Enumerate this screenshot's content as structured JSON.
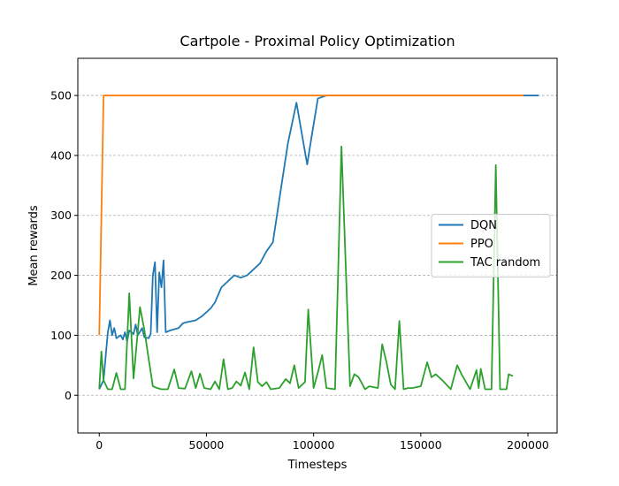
{
  "chart_data": {
    "type": "line",
    "title": "Cartpole - Proximal Policy Optimization",
    "x_label": "Timesteps",
    "y_label": "Mean rewards",
    "xlim": [
      -10000,
      213600
    ],
    "ylim": [
      -63,
      562
    ],
    "xticks": [
      0,
      50000,
      100000,
      150000,
      200000
    ],
    "yticks": [
      0,
      100,
      200,
      300,
      400,
      500
    ],
    "grid": true,
    "legend": "center right",
    "series": [
      {
        "name": "DQN",
        "color": "#1f77b4",
        "x": [
          0,
          2000,
          4000,
          5000,
          6000,
          7000,
          8000,
          10000,
          11000,
          12000,
          13000,
          14000,
          16000,
          17000,
          18000,
          20000,
          21000,
          23000,
          24000,
          25000,
          26000,
          27000,
          28000,
          29000,
          30000,
          31000,
          33000,
          37000,
          39000,
          41000,
          45000,
          48000,
          52000,
          54000,
          57000,
          60000,
          63000,
          66000,
          69000,
          72000,
          75000,
          78000,
          81000,
          85000,
          88000,
          92000,
          97000,
          99000,
          102000,
          106000,
          109000,
          205000
        ],
        "values": [
          10,
          25,
          105,
          125,
          100,
          112,
          95,
          100,
          93,
          105,
          90,
          108,
          102,
          118,
          100,
          112,
          97,
          95,
          102,
          200,
          222,
          105,
          205,
          180,
          225,
          105,
          108,
          112,
          120,
          122,
          125,
          132,
          145,
          155,
          180,
          190,
          200,
          196,
          200,
          210,
          220,
          240,
          255,
          350,
          420,
          488,
          385,
          430,
          495,
          500,
          500,
          500
        ]
      },
      {
        "name": "PPO",
        "color": "#ff7f0e",
        "x": [
          0,
          2000,
          198000
        ],
        "values": [
          100,
          500,
          500
        ]
      },
      {
        "name": "TAC random",
        "color": "#2ca02c",
        "x": [
          0,
          1000,
          2000,
          4000,
          6000,
          8000,
          10000,
          12000,
          14000,
          16000,
          19000,
          21000,
          23000,
          25000,
          27000,
          29000,
          32000,
          35000,
          37000,
          40000,
          43000,
          45000,
          47000,
          49000,
          52000,
          54000,
          56000,
          58000,
          60000,
          62000,
          64000,
          66000,
          68000,
          70000,
          72000,
          74000,
          76000,
          78000,
          80000,
          84000,
          87000,
          89000,
          91000,
          93000,
          96000,
          97500,
          100000,
          102000,
          104000,
          106000,
          110000,
          113000,
          117000,
          119000,
          121000,
          124000,
          126000,
          130000,
          132000,
          134000,
          136000,
          138000,
          140000,
          142000,
          144000,
          146000,
          150000,
          153000,
          155000,
          157000,
          160000,
          164000,
          167000,
          169000,
          173000,
          176000,
          177000,
          178000,
          180000,
          183000,
          185000,
          187000,
          190000,
          191000,
          193000
        ],
        "values": [
          10,
          73,
          25,
          10,
          10,
          37,
          10,
          10,
          170,
          28,
          147,
          110,
          62,
          15,
          12,
          10,
          10,
          43,
          12,
          11,
          40,
          12,
          36,
          12,
          10,
          23,
          10,
          60,
          10,
          12,
          23,
          16,
          38,
          10,
          80,
          22,
          15,
          22,
          10,
          12,
          27,
          20,
          50,
          12,
          22,
          143,
          12,
          38,
          67,
          12,
          10,
          415,
          15,
          35,
          30,
          10,
          15,
          12,
          85,
          55,
          18,
          10,
          124,
          10,
          12,
          12,
          15,
          55,
          30,
          35,
          25,
          10,
          50,
          35,
          10,
          42,
          12,
          44,
          10,
          10,
          384,
          10,
          10,
          35,
          32
        ]
      }
    ]
  }
}
